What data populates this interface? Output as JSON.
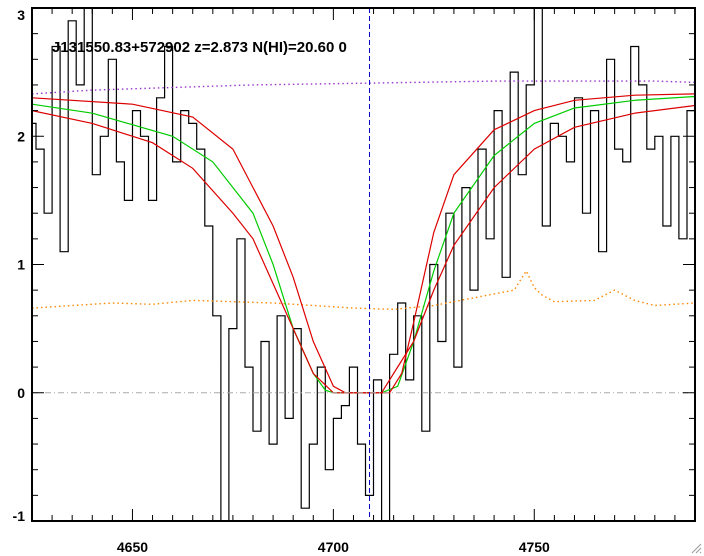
{
  "chart_data": {
    "type": "line",
    "title": "J131550.83+572902 z=2.873 N(HI)=20.60 0",
    "xlim": [
      4625,
      4790
    ],
    "ylim": [
      -1,
      3
    ],
    "xticks": [
      4650,
      4700,
      4750
    ],
    "yticks": [
      -1,
      0,
      1,
      2,
      3
    ],
    "grid": false,
    "legend": "none",
    "reference_lines": [
      {
        "name": "zero-level",
        "axis": "y",
        "value": 0,
        "color": "#aaaaaa",
        "style": "dash-dot"
      },
      {
        "name": "line-center",
        "axis": "x",
        "value": 4709,
        "color": "#0000cc",
        "style": "dashed"
      }
    ],
    "series": [
      {
        "key": "flux",
        "style": "step",
        "color": "#000000",
        "x": [
          4625,
          4627,
          4629,
          4631,
          4633,
          4635,
          4637,
          4639,
          4641,
          4643,
          4645,
          4647,
          4649,
          4651,
          4653,
          4655,
          4657,
          4659,
          4661,
          4663,
          4665,
          4667,
          4669,
          4671,
          4673,
          4675,
          4677,
          4679,
          4681,
          4683,
          4685,
          4687,
          4689,
          4691,
          4693,
          4695,
          4697,
          4699,
          4701,
          4703,
          4705,
          4707,
          4709,
          4711,
          4713,
          4715,
          4717,
          4719,
          4721,
          4723,
          4725,
          4727,
          4729,
          4731,
          4733,
          4735,
          4737,
          4739,
          4741,
          4743,
          4745,
          4747,
          4749,
          4751,
          4753,
          4755,
          4757,
          4759,
          4761,
          4763,
          4765,
          4767,
          4769,
          4771,
          4773,
          4775,
          4777,
          4779,
          4781,
          4783,
          4785,
          4787,
          4789
        ],
        "y": [
          2.1,
          1.9,
          1.4,
          2.7,
          1.1,
          2.9,
          2.4,
          3.0,
          1.7,
          2.0,
          2.6,
          1.8,
          1.5,
          2.2,
          2.0,
          1.5,
          2.3,
          2.7,
          1.8,
          2.2,
          2.1,
          1.9,
          1.3,
          0.6,
          -1.0,
          0.5,
          1.2,
          0.2,
          -0.3,
          0.4,
          -0.4,
          0.6,
          -0.2,
          0.5,
          -0.9,
          -0.4,
          0.2,
          -0.6,
          -0.2,
          -0.1,
          0.2,
          -0.4,
          -0.8,
          0.1,
          -1.0,
          0.3,
          0.7,
          0.1,
          0.6,
          -0.3,
          1.0,
          0.4,
          1.4,
          0.2,
          1.6,
          0.8,
          1.9,
          1.2,
          2.2,
          0.9,
          2.5,
          1.7,
          2.4,
          3.0,
          1.3,
          2.1,
          2.0,
          1.8,
          2.3,
          1.4,
          2.2,
          1.1,
          2.6,
          1.9,
          1.8,
          2.7,
          2.4,
          1.9,
          2.0,
          1.3,
          2.0,
          1.2,
          2.2
        ]
      },
      {
        "key": "continuum",
        "style": "dotted",
        "color": "#9933cc",
        "x": [
          4625,
          4640,
          4660,
          4680,
          4700,
          4720,
          4740,
          4760,
          4780,
          4790
        ],
        "y": [
          2.33,
          2.36,
          2.38,
          2.4,
          2.41,
          2.42,
          2.43,
          2.43,
          2.43,
          2.42
        ]
      },
      {
        "key": "error",
        "style": "dotted",
        "color": "#ff8800",
        "x": [
          4625,
          4635,
          4645,
          4655,
          4665,
          4675,
          4685,
          4695,
          4705,
          4715,
          4725,
          4735,
          4745,
          4748,
          4750,
          4752,
          4755,
          4765,
          4770,
          4775,
          4780,
          4790
        ],
        "y": [
          0.66,
          0.68,
          0.7,
          0.69,
          0.72,
          0.71,
          0.7,
          0.68,
          0.66,
          0.65,
          0.68,
          0.74,
          0.8,
          0.95,
          0.82,
          0.76,
          0.71,
          0.72,
          0.8,
          0.72,
          0.68,
          0.7
        ]
      },
      {
        "key": "model-fit",
        "style": "line",
        "color": "#00cc00",
        "x": [
          4625,
          4640,
          4660,
          4670,
          4680,
          4685,
          4690,
          4695,
          4698,
          4700,
          4705,
          4712,
          4716,
          4720,
          4725,
          4730,
          4740,
          4750,
          4760,
          4775,
          4790
        ],
        "y": [
          2.25,
          2.18,
          2.0,
          1.8,
          1.4,
          1.0,
          0.5,
          0.15,
          0.02,
          0.0,
          0.0,
          0.0,
          0.05,
          0.4,
          0.95,
          1.4,
          1.85,
          2.1,
          2.22,
          2.28,
          2.31
        ]
      },
      {
        "key": "model-upper",
        "style": "line",
        "color": "#dd0000",
        "x": [
          4625,
          4650,
          4665,
          4675,
          4685,
          4690,
          4695,
          4700,
          4703,
          4706,
          4714,
          4717,
          4720,
          4725,
          4730,
          4740,
          4750,
          4760,
          4775,
          4790
        ],
        "y": [
          2.3,
          2.25,
          2.15,
          1.9,
          1.3,
          0.9,
          0.4,
          0.05,
          0.0,
          0.0,
          0.0,
          0.15,
          0.55,
          1.25,
          1.7,
          2.05,
          2.2,
          2.28,
          2.32,
          2.33
        ]
      },
      {
        "key": "model-lower",
        "style": "line",
        "color": "#dd0000",
        "x": [
          4625,
          4640,
          4655,
          4665,
          4675,
          4680,
          4685,
          4690,
          4695,
          4700,
          4708,
          4712,
          4715,
          4720,
          4725,
          4730,
          4740,
          4750,
          4760,
          4775,
          4790
        ],
        "y": [
          2.2,
          2.1,
          1.95,
          1.75,
          1.4,
          1.2,
          0.85,
          0.5,
          0.15,
          0.0,
          0.0,
          0.0,
          0.15,
          0.4,
          0.8,
          1.15,
          1.6,
          1.9,
          2.07,
          2.18,
          2.24
        ]
      }
    ]
  }
}
